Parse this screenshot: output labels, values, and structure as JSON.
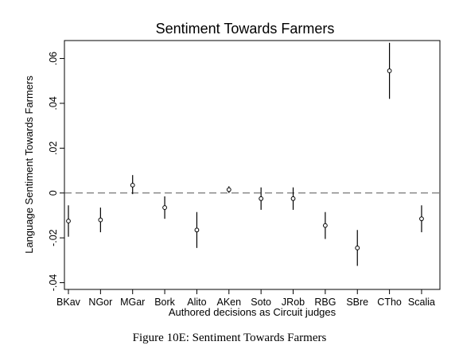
{
  "chart_data": {
    "type": "scatter",
    "title": "Sentiment Towards Farmers",
    "xlabel": "Authored decisions as Circuit judges",
    "ylabel": "Language Sentiment Towards Farmers",
    "categories": [
      "BKav",
      "NGor",
      "MGar",
      "Bork",
      "Alito",
      "AKen",
      "Soto",
      "JRob",
      "RBG",
      "SBre",
      "CTho",
      "Scalia"
    ],
    "series": [
      {
        "values": [
          -0.0125,
          -0.012,
          0.0035,
          -0.0065,
          -0.0165,
          0.0015,
          -0.0025,
          -0.0025,
          -0.0145,
          -0.0245,
          0.0545,
          -0.0115
        ],
        "lower": [
          -0.0195,
          -0.0175,
          -0.0005,
          -0.0115,
          -0.0245,
          0.0,
          -0.0075,
          -0.0075,
          -0.0205,
          -0.0325,
          0.042,
          -0.0175
        ],
        "upper": [
          -0.0055,
          -0.0065,
          0.008,
          -0.0015,
          -0.0085,
          0.003,
          0.0025,
          0.0025,
          -0.0085,
          -0.0165,
          0.067,
          -0.0055
        ]
      }
    ],
    "y_ticks": [
      {
        "value": -0.04,
        "label": "-.04"
      },
      {
        "value": -0.02,
        "label": "-.02"
      },
      {
        "value": 0,
        "label": "0"
      },
      {
        "value": 0.02,
        "label": ".02"
      },
      {
        "value": 0.04,
        "label": ".04"
      },
      {
        "value": 0.06,
        "label": ".06"
      }
    ],
    "ylim": [
      -0.043,
      0.068
    ],
    "reference_line": 0,
    "grid": false,
    "colors": {
      "marker": "#000000",
      "errorbar": "#000000",
      "reference_line": "#555555"
    }
  },
  "caption": "Figure 10E: Sentiment Towards Farmers"
}
